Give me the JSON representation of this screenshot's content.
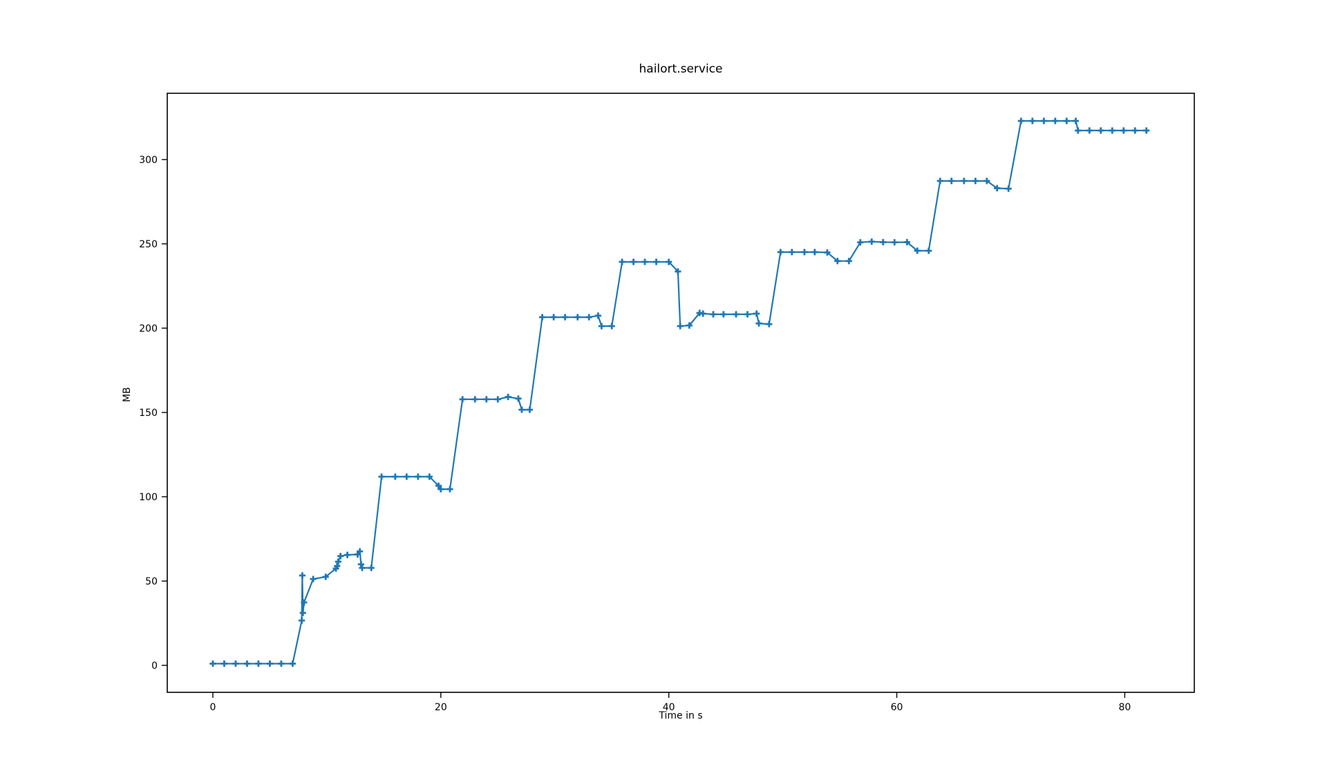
{
  "figure": {
    "background": "#ffffff",
    "title": "hailort.service"
  },
  "chart_data": {
    "type": "line",
    "title": "hailort.service",
    "xlabel": "Time in s",
    "ylabel": "MB",
    "legend": null,
    "grid": false,
    "line_color": "#1f77b4",
    "marker": "plus",
    "axis_color": "#000000",
    "xlim": [
      -4.0,
      86.1
    ],
    "ylim": [
      -16.0,
      339.3
    ],
    "x_ticks": [
      0,
      20,
      40,
      60,
      80
    ],
    "y_ticks": [
      0,
      50,
      100,
      150,
      200,
      250,
      300
    ],
    "points": [
      [
        0,
        1
      ],
      [
        1,
        1
      ],
      [
        2,
        1
      ],
      [
        3,
        1
      ],
      [
        4,
        1
      ],
      [
        5,
        1
      ],
      [
        6,
        1
      ],
      [
        7,
        1
      ],
      [
        7.8,
        26.6
      ],
      [
        7.85,
        53.3
      ],
      [
        7.9,
        31.1
      ],
      [
        8,
        37.3
      ],
      [
        8.8,
        51.2
      ],
      [
        9.9,
        52.5
      ],
      [
        10.8,
        57.4
      ],
      [
        10.9,
        58.9
      ],
      [
        11,
        61.5
      ],
      [
        11.2,
        64.8
      ],
      [
        11.8,
        65.5
      ],
      [
        12.7,
        65.8
      ],
      [
        12.9,
        67.6
      ],
      [
        13,
        59.9
      ],
      [
        13.1,
        57.8
      ],
      [
        13.9,
        57.8
      ],
      [
        14.8,
        111.9
      ],
      [
        16,
        111.9
      ],
      [
        17,
        111.9
      ],
      [
        18,
        111.9
      ],
      [
        19,
        111.9
      ],
      [
        19.8,
        106.5
      ],
      [
        20,
        104.5
      ],
      [
        20.8,
        104.5
      ],
      [
        21.9,
        157.8
      ],
      [
        23,
        157.8
      ],
      [
        24,
        157.8
      ],
      [
        25,
        157.8
      ],
      [
        25.9,
        159.2
      ],
      [
        26.8,
        158.2
      ],
      [
        27.1,
        151.6
      ],
      [
        27.8,
        151.6
      ],
      [
        28.9,
        206.5
      ],
      [
        29.9,
        206.5
      ],
      [
        30.9,
        206.5
      ],
      [
        32,
        206.5
      ],
      [
        33,
        206.5
      ],
      [
        33.8,
        207.4
      ],
      [
        34.1,
        201.2
      ],
      [
        35,
        201.2
      ],
      [
        35.9,
        239.3
      ],
      [
        36.9,
        239.3
      ],
      [
        37.9,
        239.3
      ],
      [
        38.9,
        239.3
      ],
      [
        40,
        239.3
      ],
      [
        40.8,
        233.6
      ],
      [
        41,
        201.2
      ],
      [
        41.8,
        201.6
      ],
      [
        42.7,
        209
      ],
      [
        43,
        208.6
      ],
      [
        43.9,
        208.2
      ],
      [
        44.8,
        208.2
      ],
      [
        45.9,
        208.2
      ],
      [
        46.9,
        208.2
      ],
      [
        47.7,
        208.6
      ],
      [
        47.9,
        202.8
      ],
      [
        48.8,
        202.4
      ],
      [
        49.8,
        245.1
      ],
      [
        50.8,
        245.1
      ],
      [
        51.9,
        245.1
      ],
      [
        52.8,
        245.1
      ],
      [
        53.9,
        244.9
      ],
      [
        54.8,
        239.8
      ],
      [
        55.8,
        239.8
      ],
      [
        56.8,
        250.9
      ],
      [
        57.8,
        251.3
      ],
      [
        58.8,
        251
      ],
      [
        59.8,
        250.9
      ],
      [
        60.9,
        251
      ],
      [
        61.8,
        245.9
      ],
      [
        62.8,
        245.9
      ],
      [
        63.8,
        287.3
      ],
      [
        64.8,
        287.3
      ],
      [
        65.9,
        287.3
      ],
      [
        66.9,
        287.3
      ],
      [
        67.9,
        287.3
      ],
      [
        68.8,
        283
      ],
      [
        69.8,
        282.7
      ],
      [
        70.9,
        322.9
      ],
      [
        71.9,
        322.9
      ],
      [
        72.9,
        322.9
      ],
      [
        73.9,
        322.9
      ],
      [
        74.9,
        322.9
      ],
      [
        75.7,
        322.9
      ],
      [
        75.9,
        317.2
      ],
      [
        76.9,
        317.2
      ],
      [
        77.9,
        317.2
      ],
      [
        78.9,
        317.2
      ],
      [
        79.9,
        317.2
      ],
      [
        80.9,
        317.2
      ],
      [
        81.9,
        317.2
      ]
    ]
  }
}
